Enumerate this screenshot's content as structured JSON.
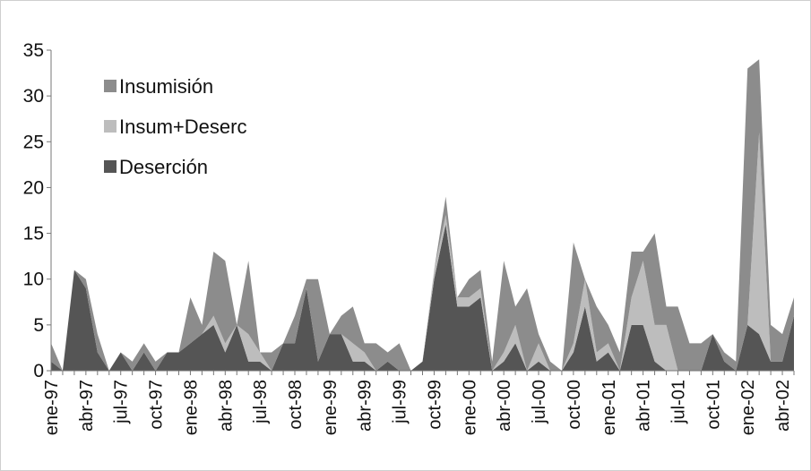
{
  "chart_data": {
    "type": "area",
    "stacked": true,
    "title": "",
    "xlabel": "",
    "ylabel": "",
    "ylim": [
      0,
      35
    ],
    "yticks": [
      0,
      5,
      10,
      15,
      20,
      25,
      30,
      35
    ],
    "grid": false,
    "legend_position": "top-left, inside plot",
    "x_tick_labels": [
      "ene-97",
      "abr-97",
      "jul-97",
      "oct-97",
      "ene-98",
      "abr-98",
      "jul-98",
      "oct-98",
      "ene-99",
      "abr-99",
      "jul-99",
      "oct-99",
      "ene-00",
      "abr-00",
      "jul-00",
      "oct-00",
      "ene-01",
      "abr-01",
      "jul-01",
      "oct-01",
      "ene-02",
      "abr-02"
    ],
    "x": [
      "ene-97",
      "feb-97",
      "mar-97",
      "abr-97",
      "may-97",
      "jun-97",
      "jul-97",
      "ago-97",
      "sep-97",
      "oct-97",
      "nov-97",
      "dic-97",
      "ene-98",
      "feb-98",
      "mar-98",
      "abr-98",
      "may-98",
      "jun-98",
      "jul-98",
      "ago-98",
      "sep-98",
      "oct-98",
      "nov-98",
      "dic-98",
      "ene-99",
      "feb-99",
      "mar-99",
      "abr-99",
      "may-99",
      "jun-99",
      "jul-99",
      "ago-99",
      "sep-99",
      "oct-99",
      "nov-99",
      "dic-99",
      "ene-00",
      "feb-00",
      "mar-00",
      "abr-00",
      "may-00",
      "jun-00",
      "jul-00",
      "ago-00",
      "sep-00",
      "oct-00",
      "nov-00",
      "dic-00",
      "ene-01",
      "feb-01",
      "mar-01",
      "abr-01",
      "may-01",
      "jun-01",
      "jul-01",
      "ago-01",
      "sep-01",
      "oct-01",
      "nov-01",
      "dic-01",
      "ene-02",
      "feb-02",
      "mar-02",
      "abr-02",
      "may-02"
    ],
    "series": [
      {
        "name": "Deserción",
        "color": "#555555",
        "values": [
          1,
          0,
          11,
          9,
          2,
          0,
          2,
          0,
          2,
          0,
          2,
          2,
          3,
          4,
          5,
          2,
          5,
          1,
          1,
          0,
          3,
          3,
          9,
          1,
          4,
          4,
          1,
          1,
          0,
          1,
          0,
          0,
          1,
          10,
          16,
          7,
          7,
          8,
          0,
          1,
          3,
          0,
          1,
          0,
          0,
          2,
          7,
          1,
          2,
          0,
          5,
          5,
          1,
          0,
          0,
          0,
          0,
          4,
          1,
          0,
          5,
          4,
          1,
          1,
          6
        ]
      },
      {
        "name": "Insum+Deserc",
        "color": "#bdbdbd",
        "values": [
          0,
          0,
          0,
          0,
          0,
          0,
          0,
          0,
          0,
          0,
          0,
          0,
          0,
          0,
          1,
          1,
          0,
          3,
          1,
          0,
          0,
          0,
          0,
          0,
          0,
          0,
          2,
          1,
          0,
          0,
          0,
          0,
          0,
          1,
          1,
          1,
          1,
          1,
          0,
          1,
          2,
          0,
          2,
          0,
          0,
          1,
          3,
          1,
          1,
          0,
          3,
          7,
          4,
          5,
          0,
          0,
          0,
          0,
          0,
          0,
          0,
          22,
          0,
          0,
          0
        ]
      },
      {
        "name": "Insumisión",
        "color": "#8c8c8c",
        "values": [
          2,
          0,
          0,
          1,
          2,
          0,
          0,
          1,
          1,
          1,
          0,
          0,
          5,
          1,
          7,
          9,
          0,
          8,
          0,
          2,
          0,
          3,
          1,
          9,
          0,
          2,
          4,
          1,
          3,
          1,
          3,
          0,
          0,
          0,
          2,
          0,
          2,
          2,
          1,
          10,
          2,
          9,
          1,
          1,
          0,
          11,
          0,
          5,
          2,
          2,
          5,
          1,
          10,
          2,
          7,
          3,
          3,
          0,
          1,
          1,
          28,
          8,
          4,
          3,
          2
        ]
      }
    ]
  }
}
